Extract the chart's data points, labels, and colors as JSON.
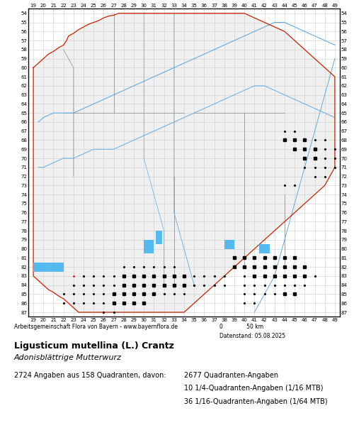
{
  "title_bold": "Ligusticum mutellina (L.) Crantz",
  "title_italic": "Adonisblättrige Mutterwurz",
  "subtitle": "2724 Angaben aus 158 Quadranten, davon:",
  "stats": [
    "2677 Quadranten-Angaben",
    "10 1/4-Quadranten-Angaben (1/16 MTB)",
    "36 1/16-Quadranten-Angaben (1/64 MTB)"
  ],
  "attribution": "Arbeitsgemeinschaft Flora von Bayern - www.bayernflora.de",
  "date_label": "Datenstand: 05.08.2025",
  "scale_label": "0              50 km",
  "x_ticks": [
    19,
    20,
    21,
    22,
    23,
    24,
    25,
    26,
    27,
    28,
    29,
    30,
    31,
    32,
    33,
    34,
    35,
    36,
    37,
    38,
    39,
    40,
    41,
    42,
    43,
    44,
    45,
    46,
    47,
    48,
    49
  ],
  "y_ticks": [
    54,
    55,
    56,
    57,
    58,
    59,
    60,
    61,
    62,
    63,
    64,
    65,
    66,
    67,
    68,
    69,
    70,
    71,
    72,
    73,
    74,
    75,
    76,
    77,
    78,
    79,
    80,
    81,
    82,
    83,
    84,
    85,
    86,
    87
  ],
  "grid_color": "#cccccc",
  "bg_color": "#ffffff",
  "map_area_color": "#f5f5f5",
  "border_red_color": "#cc2200",
  "border_gray_color": "#888888",
  "river_color": "#66aadd",
  "lake_color": "#55bbee",
  "dot_color": "#000000",
  "square_color": "#000000",
  "small_dot_color": "#ff0000",
  "x_min": 19,
  "x_max": 49,
  "y_min": 54,
  "y_max": 87,
  "figsize": [
    5.0,
    6.2
  ],
  "dpi": 100
}
